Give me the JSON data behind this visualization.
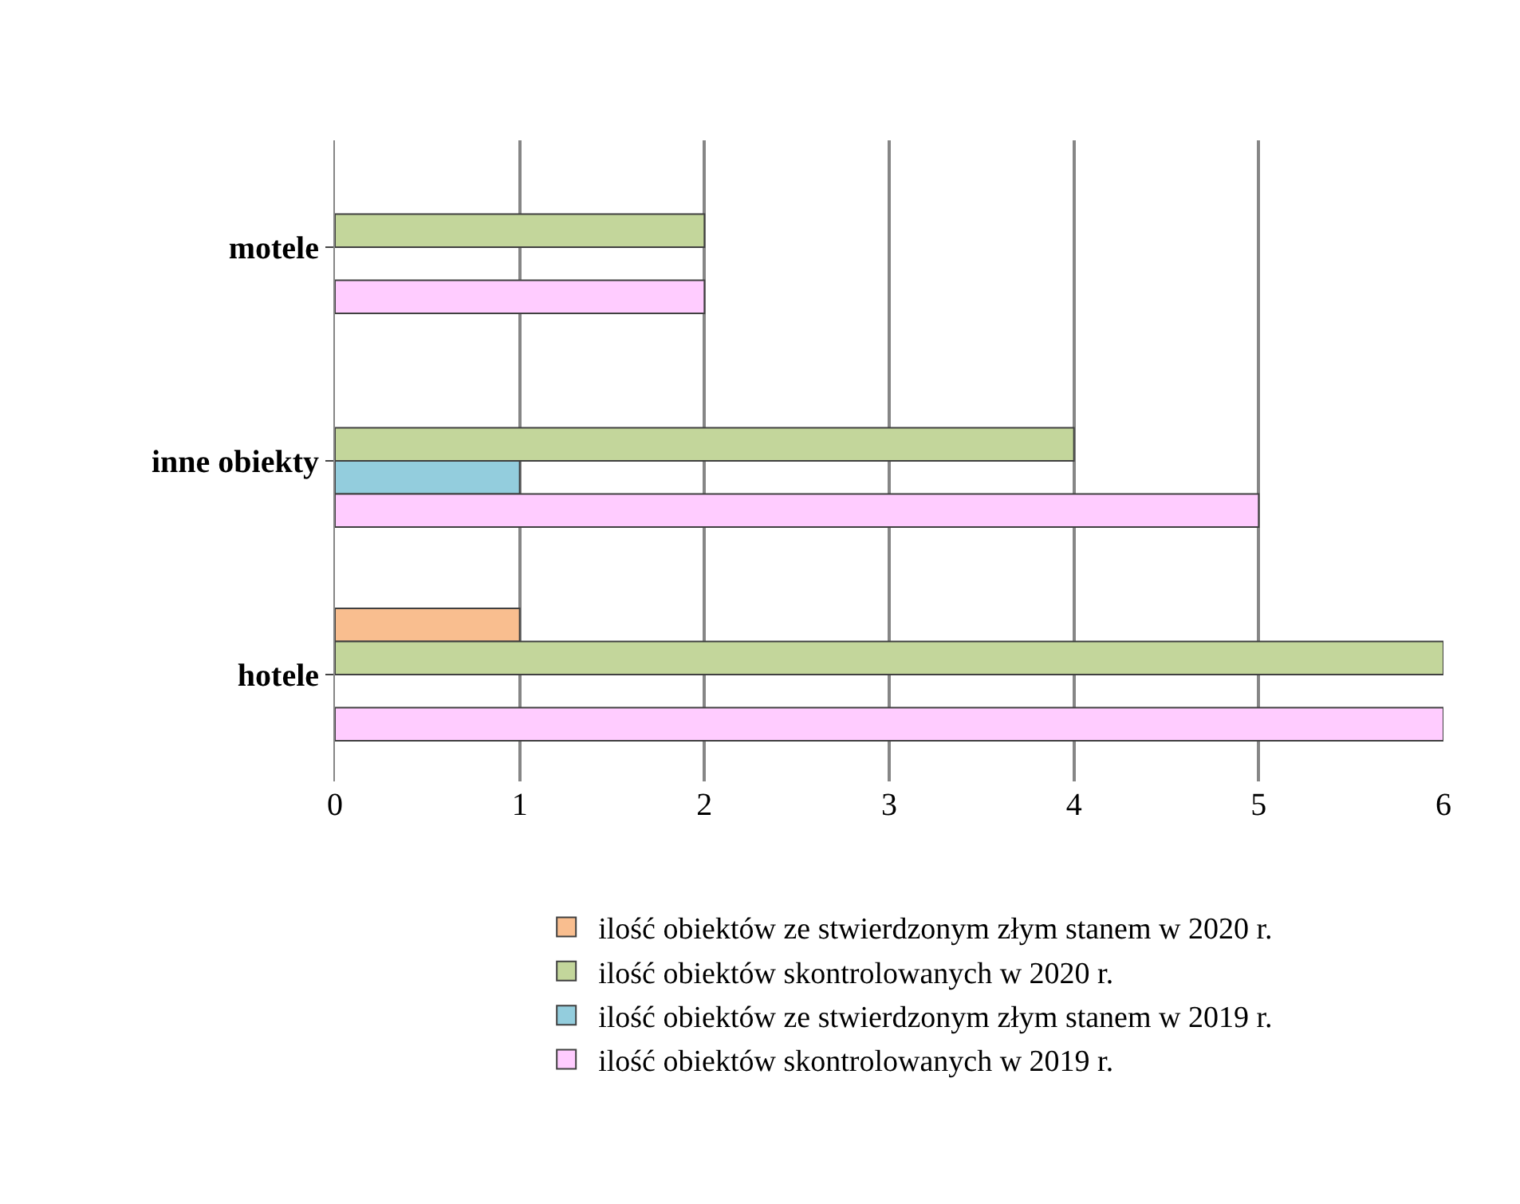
{
  "chart_data": {
    "type": "bar",
    "orientation": "horizontal",
    "categories": [
      "motele",
      "inne obiekty",
      "hotele"
    ],
    "series": [
      {
        "name": "ilość obiektów ze stwierdzonym złym stanem w 2020 r.",
        "color": "#f9be8f",
        "values": [
          null,
          null,
          1
        ]
      },
      {
        "name": "ilość obiektów skontrolowanych w 2020 r.",
        "color": "#c3d69b",
        "values": [
          2,
          4,
          6
        ]
      },
      {
        "name": "ilość obiektów ze stwierdzonym złym stanem w 2019 r.",
        "color": "#93cddd",
        "values": [
          null,
          1,
          null
        ]
      },
      {
        "name": "ilość obiektów skontrolowanych w 2019 r.",
        "color": "#ffccff",
        "values": [
          2,
          5,
          6
        ]
      }
    ],
    "xlim": [
      0,
      6
    ],
    "xticks": [
      0,
      1,
      2,
      3,
      4,
      5,
      6
    ],
    "grid": "x",
    "legend": "bottom"
  }
}
